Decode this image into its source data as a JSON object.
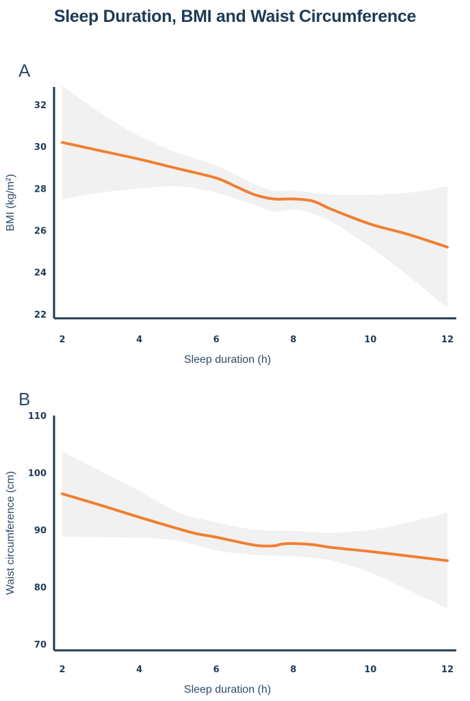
{
  "title": "Sleep Duration, BMI and Waist Circumference",
  "colors": {
    "line": "#f07f30",
    "band": "#f1f1f1",
    "axis": "#1f3a55"
  },
  "chart_data": [
    {
      "panel": "A",
      "type": "line",
      "xlabel": "Sleep duration (h)",
      "ylabel": "BMI (kg/m²)",
      "xlim": [
        2,
        12
      ],
      "ylim": [
        21.8,
        32.85
      ],
      "xticks": [
        2,
        4,
        6,
        8,
        10,
        12
      ],
      "yticks": [
        22,
        24,
        26,
        28,
        30,
        32
      ],
      "grid": false,
      "series": [
        {
          "x": [
            2,
            3,
            4,
            5,
            6,
            6.5,
            7,
            7.5,
            8,
            8.5,
            9,
            10,
            11,
            12
          ],
          "y": [
            30.2,
            29.8,
            29.4,
            28.95,
            28.5,
            28.1,
            27.7,
            27.5,
            27.5,
            27.4,
            27.0,
            26.3,
            25.8,
            25.2
          ]
        }
      ],
      "confidence_band": {
        "x": [
          2,
          3,
          4,
          5,
          6,
          7,
          7.5,
          8,
          8.5,
          9,
          10,
          11,
          12
        ],
        "upper": [
          32.9,
          31.6,
          30.5,
          29.7,
          29.1,
          28.2,
          27.9,
          27.9,
          27.8,
          27.7,
          27.7,
          27.8,
          28.1
        ],
        "lower": [
          27.5,
          27.8,
          28.0,
          28.1,
          27.8,
          27.2,
          26.9,
          27.0,
          26.8,
          26.4,
          25.2,
          23.8,
          22.3
        ]
      }
    },
    {
      "panel": "B",
      "type": "line",
      "xlabel": "Sleep duration (h)",
      "ylabel": "Waist circumference (cm)",
      "xlim": [
        2,
        12
      ],
      "ylim": [
        68.9,
        110
      ],
      "xticks": [
        2,
        4,
        6,
        8,
        10,
        12
      ],
      "yticks": [
        70,
        80,
        90,
        100,
        110
      ],
      "grid": false,
      "series": [
        {
          "x": [
            2,
            3,
            4,
            5,
            5.5,
            6,
            7,
            7.5,
            7.7,
            8,
            8.5,
            9,
            10,
            11,
            12
          ],
          "y": [
            96.3,
            94.3,
            92.2,
            90.2,
            89.3,
            88.7,
            87.3,
            87.2,
            87.5,
            87.6,
            87.4,
            86.9,
            86.2,
            85.4,
            84.6
          ]
        }
      ],
      "confidence_band": {
        "x": [
          2,
          3,
          4,
          5,
          6,
          7,
          8,
          9,
          10,
          11,
          12
        ],
        "upper": [
          103.7,
          100.3,
          96.8,
          93.1,
          91.3,
          90.0,
          89.8,
          89.5,
          90.0,
          91.3,
          93.0
        ],
        "lower": [
          88.8,
          88.7,
          88.6,
          88.1,
          86.4,
          85.6,
          85.4,
          84.6,
          82.5,
          79.4,
          76.2
        ]
      }
    }
  ]
}
